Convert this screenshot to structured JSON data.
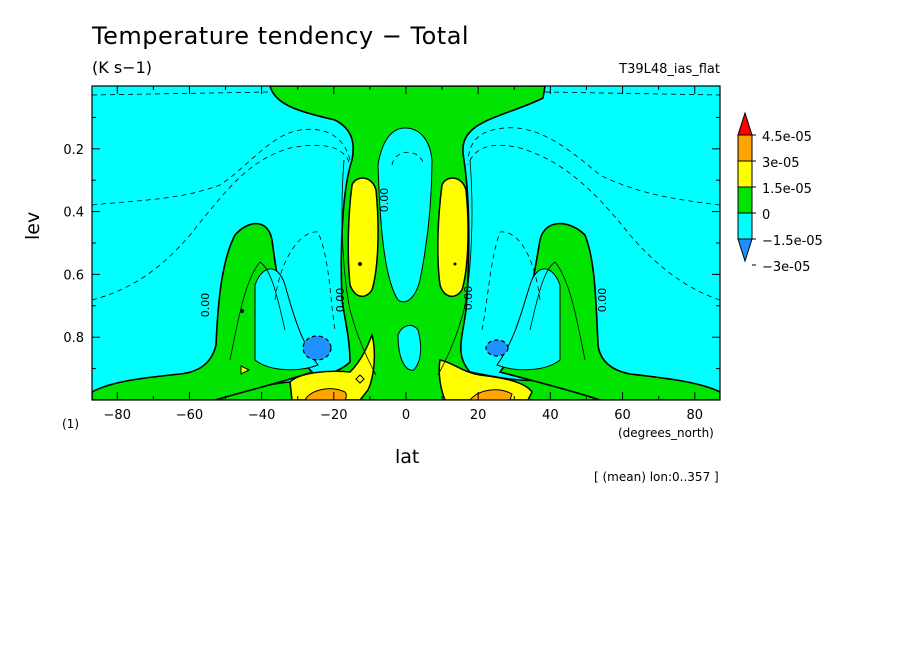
{
  "chart_data": {
    "type": "heatmap",
    "title": "Temperature tendency − Total",
    "units": "(K s−1)",
    "run_name": "T39L48_ias_flat",
    "xlabel": "lat",
    "xunit": "(degrees_north)",
    "ylabel": "lev",
    "note": "(1)",
    "mean_note": "[ (mean) lon:0..357 ]",
    "xlim": [
      -87,
      87
    ],
    "ylim": [
      1.0,
      0.0
    ],
    "y_inverted": true,
    "x_ticks": [
      -80,
      -60,
      -40,
      -20,
      0,
      20,
      40,
      60,
      80
    ],
    "x_tick_labels": [
      "−80",
      "−60",
      "−40",
      "−20",
      "0",
      "20",
      "40",
      "60",
      "80"
    ],
    "y_ticks": [
      0.2,
      0.4,
      0.6,
      0.8
    ],
    "y_tick_labels": [
      "0.2",
      "0.4",
      "0.6",
      "0.8"
    ],
    "contour_label": "0.00",
    "colorbar": {
      "labels": [
        "4.5e-05",
        "3e-05",
        "1.5e-05",
        "0",
        "−1.5e-05",
        "−3e-05"
      ],
      "colors": [
        "#ff0000",
        "#ffa500",
        "#ffff00",
        "#00e400",
        "#00ffff",
        "#1e90ff"
      ]
    },
    "levels": [
      -3e-05,
      -1.5e-05,
      0,
      1.5e-05,
      3e-05,
      4.5e-05
    ],
    "regions": {
      "background": "negative (-1.5e-05 to 0)",
      "green_column_equatorial": "0 to 1.5e-05",
      "yellow_towers_lat": [
        -13,
        13
      ],
      "blue_minima_lat": [
        -25,
        25
      ],
      "blue_minima_lev": 0.83,
      "orange_surface_lat": [
        -27,
        24
      ]
    }
  }
}
